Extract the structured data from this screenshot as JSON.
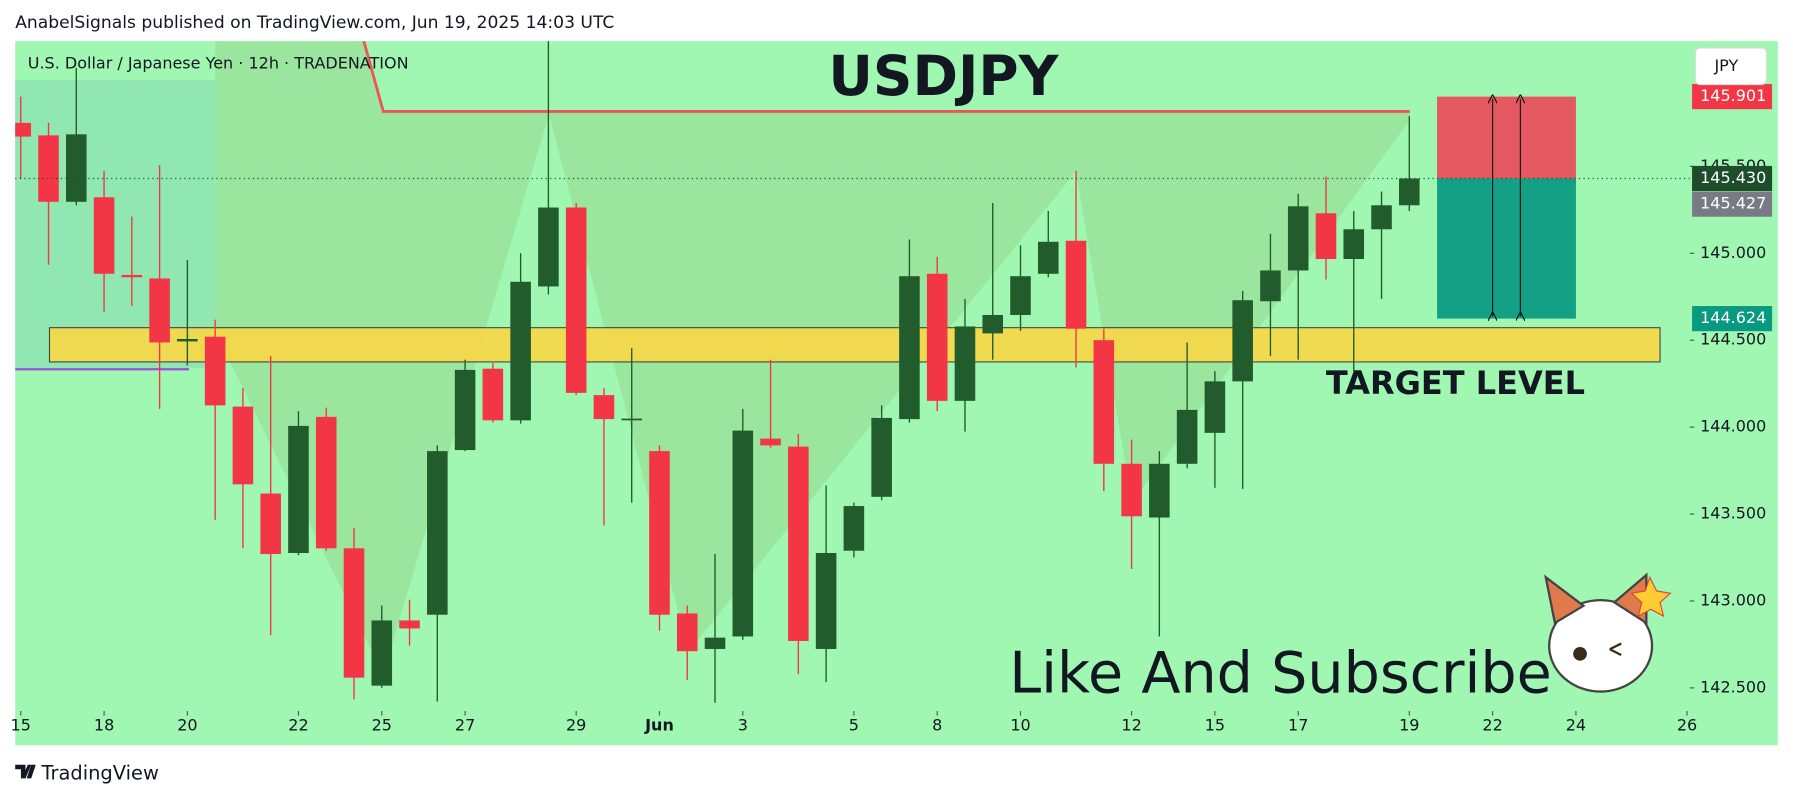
{
  "header": {
    "published": "AnabelSignals published on TradingView.com, Jun 19, 2025 14:03 UTC"
  },
  "chart_data": {
    "type": "candlestick",
    "title": "USDJPY",
    "subtitle": "U.S. Dollar / Japanese Yen · 12h · TRADENATION",
    "currency": "JPY",
    "annotation": "Like And Subscribe",
    "open": [
      145.75,
      145.678,
      145.296,
      145.322,
      144.875,
      144.855,
      144.493,
      144.52,
      144.118,
      143.618,
      143.276,
      144.059,
      143.303,
      142.513,
      142.888,
      142.921,
      143.868,
      144.336,
      144.039,
      144.809,
      145.263,
      144.184,
      144.049,
      143.862,
      142.928,
      142.724,
      142.796,
      143.934,
      143.888,
      142.724,
      143.289,
      143.599,
      144.046,
      144.882,
      144.151,
      144.539,
      144.645,
      144.882,
      145.072,
      144.5,
      143.789,
      143.48,
      143.789,
      143.967,
      144.263,
      144.724,
      144.901,
      145.23,
      144.967,
      145.138,
      145.276
    ],
    "high": [
      145.901,
      145.75,
      146.066,
      145.474,
      145.211,
      145.507,
      144.961,
      144.618,
      144.224,
      144.408,
      144.092,
      144.112,
      143.421,
      142.974,
      143.007,
      143.895,
      144.388,
      144.368,
      145.0,
      146.25,
      145.289,
      144.224,
      144.454,
      143.895,
      142.974,
      143.27,
      144.105,
      144.388,
      143.961,
      143.664,
      143.566,
      144.125,
      145.079,
      144.98,
      144.737,
      145.289,
      145.046,
      145.243,
      145.474,
      144.566,
      143.928,
      143.862,
      144.487,
      144.322,
      144.783,
      145.112,
      145.342,
      145.441,
      145.243,
      145.355,
      145.789
    ],
    "low": [
      145.428,
      144.934,
      145.276,
      144.664,
      144.697,
      144.105,
      144.355,
      143.467,
      143.303,
      142.803,
      143.263,
      143.289,
      142.434,
      142.5,
      142.743,
      142.421,
      143.862,
      144.026,
      144.02,
      144.763,
      144.184,
      143.434,
      143.566,
      142.829,
      142.546,
      142.414,
      142.776,
      143.882,
      142.579,
      142.533,
      143.25,
      143.579,
      144.026,
      144.092,
      143.974,
      144.388,
      144.553,
      144.862,
      144.342,
      143.632,
      143.184,
      142.796,
      143.763,
      143.651,
      143.645,
      144.408,
      144.388,
      144.849,
      144.322,
      144.737,
      145.243
    ],
    "close": [
      145.671,
      145.296,
      145.684,
      144.882,
      144.862,
      144.487,
      144.507,
      144.125,
      143.671,
      143.27,
      144.007,
      143.303,
      142.559,
      142.888,
      142.842,
      143.862,
      144.329,
      144.039,
      144.836,
      145.263,
      144.197,
      144.046,
      144.049,
      142.921,
      142.711,
      142.789,
      143.98,
      143.895,
      142.77,
      143.276,
      143.546,
      144.053,
      144.868,
      144.151,
      144.579,
      144.645,
      144.868,
      145.066,
      144.566,
      143.789,
      143.487,
      143.789,
      144.099,
      144.263,
      144.73,
      144.901,
      145.27,
      144.967,
      145.138,
      145.276,
      145.43
    ],
    "up_color": "#235c2c",
    "down_color": "#f23645",
    "xlim": [
      -0.2,
      60.1
    ],
    "xticks": [
      {
        "value": 0,
        "label": "15"
      },
      {
        "value": 3,
        "label": "18"
      },
      {
        "value": 6,
        "label": "20"
      },
      {
        "value": 10,
        "label": "22"
      },
      {
        "value": 13,
        "label": "25"
      },
      {
        "value": 16,
        "label": "27"
      },
      {
        "value": 20,
        "label": "29"
      },
      {
        "value": 23,
        "label": "Jun"
      },
      {
        "value": 26,
        "label": "3"
      },
      {
        "value": 30,
        "label": "5"
      },
      {
        "value": 33,
        "label": "8"
      },
      {
        "value": 36,
        "label": "10"
      },
      {
        "value": 40,
        "label": "12"
      },
      {
        "value": 43,
        "label": "15"
      },
      {
        "value": 46,
        "label": "17"
      },
      {
        "value": 50,
        "label": "19"
      },
      {
        "value": 53,
        "label": "22"
      },
      {
        "value": 56,
        "label": "24"
      },
      {
        "value": 60,
        "label": "26"
      }
    ],
    "ylim": [
      142.17,
      146.22
    ],
    "yticks": [
      {
        "value": 142.5,
        "label": "142.500"
      },
      {
        "value": 143,
        "label": "143.000"
      },
      {
        "value": 143.5,
        "label": "143.500"
      },
      {
        "value": 144,
        "label": "144.000"
      },
      {
        "value": 144.5,
        "label": "144.500"
      },
      {
        "value": 145,
        "label": "145.000"
      },
      {
        "value": 145.5,
        "label": "145.500"
      }
    ],
    "price_labels": [
      {
        "value": 145.901,
        "label": "145.901",
        "color": "#f23645"
      },
      {
        "value": 145.43,
        "label": "145.430",
        "color": "#1e4d2b"
      },
      {
        "value": 145.427,
        "label": "145.427",
        "color": "#787b86"
      },
      {
        "value": 144.624,
        "label": "144.624",
        "color": "#089981"
      }
    ],
    "zone": {
      "label": "TARGET LEVEL",
      "low": 144.375,
      "high": 144.572,
      "color": "#ffd740"
    },
    "resistance": {
      "value": 145.816,
      "color": "#f05454"
    },
    "position": {
      "stop": 145.901,
      "entry": 145.43,
      "target": 144.624,
      "x": [
        51,
        56
      ],
      "stop_color": "#e4585f",
      "target_color": "#13a085"
    }
  },
  "footer": {
    "brand": "TradingView"
  }
}
